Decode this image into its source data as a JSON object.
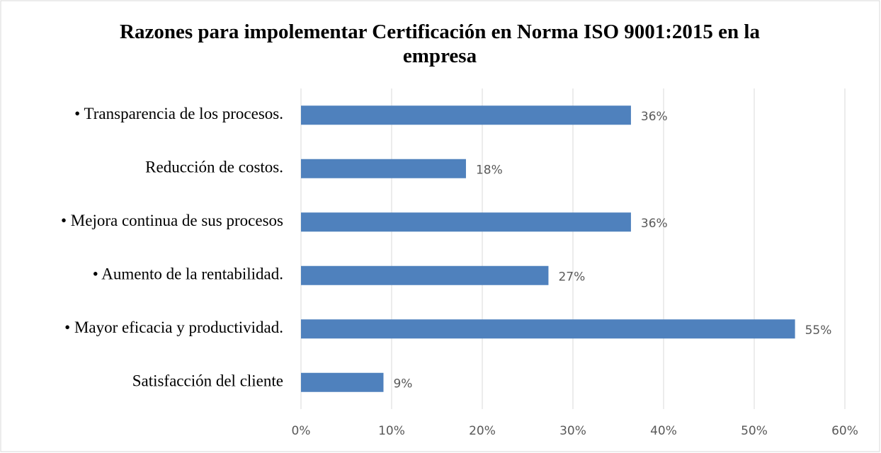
{
  "chart_data": {
    "type": "bar",
    "orientation": "horizontal",
    "title": "Razones para impolementar  Certificación en Norma ISO 9001:2015 en la empresa",
    "categories": [
      "• Transparencia de los procesos.",
      "Reducción de costos.",
      "• Mejora continua de sus procesos",
      "• Aumento de la rentabilidad.",
      "• Mayor eficacia y productividad.",
      "Satisfacción del cliente"
    ],
    "values": [
      36.4,
      18.2,
      36.4,
      27.3,
      54.5,
      9.1
    ],
    "value_labels": [
      "36%",
      "18%",
      "36%",
      "27%",
      "55%",
      "9%"
    ],
    "color": "#4f81bd",
    "xlim": [
      0,
      60
    ],
    "xticks": [
      {
        "value": 0,
        "label": "0%"
      },
      {
        "value": 10,
        "label": "10%"
      },
      {
        "value": 20,
        "label": "20%"
      },
      {
        "value": 30,
        "label": "30%"
      },
      {
        "value": 40,
        "label": "40%"
      },
      {
        "value": 50,
        "label": "50%"
      },
      {
        "value": 60,
        "label": "60%"
      }
    ],
    "grid": true
  }
}
